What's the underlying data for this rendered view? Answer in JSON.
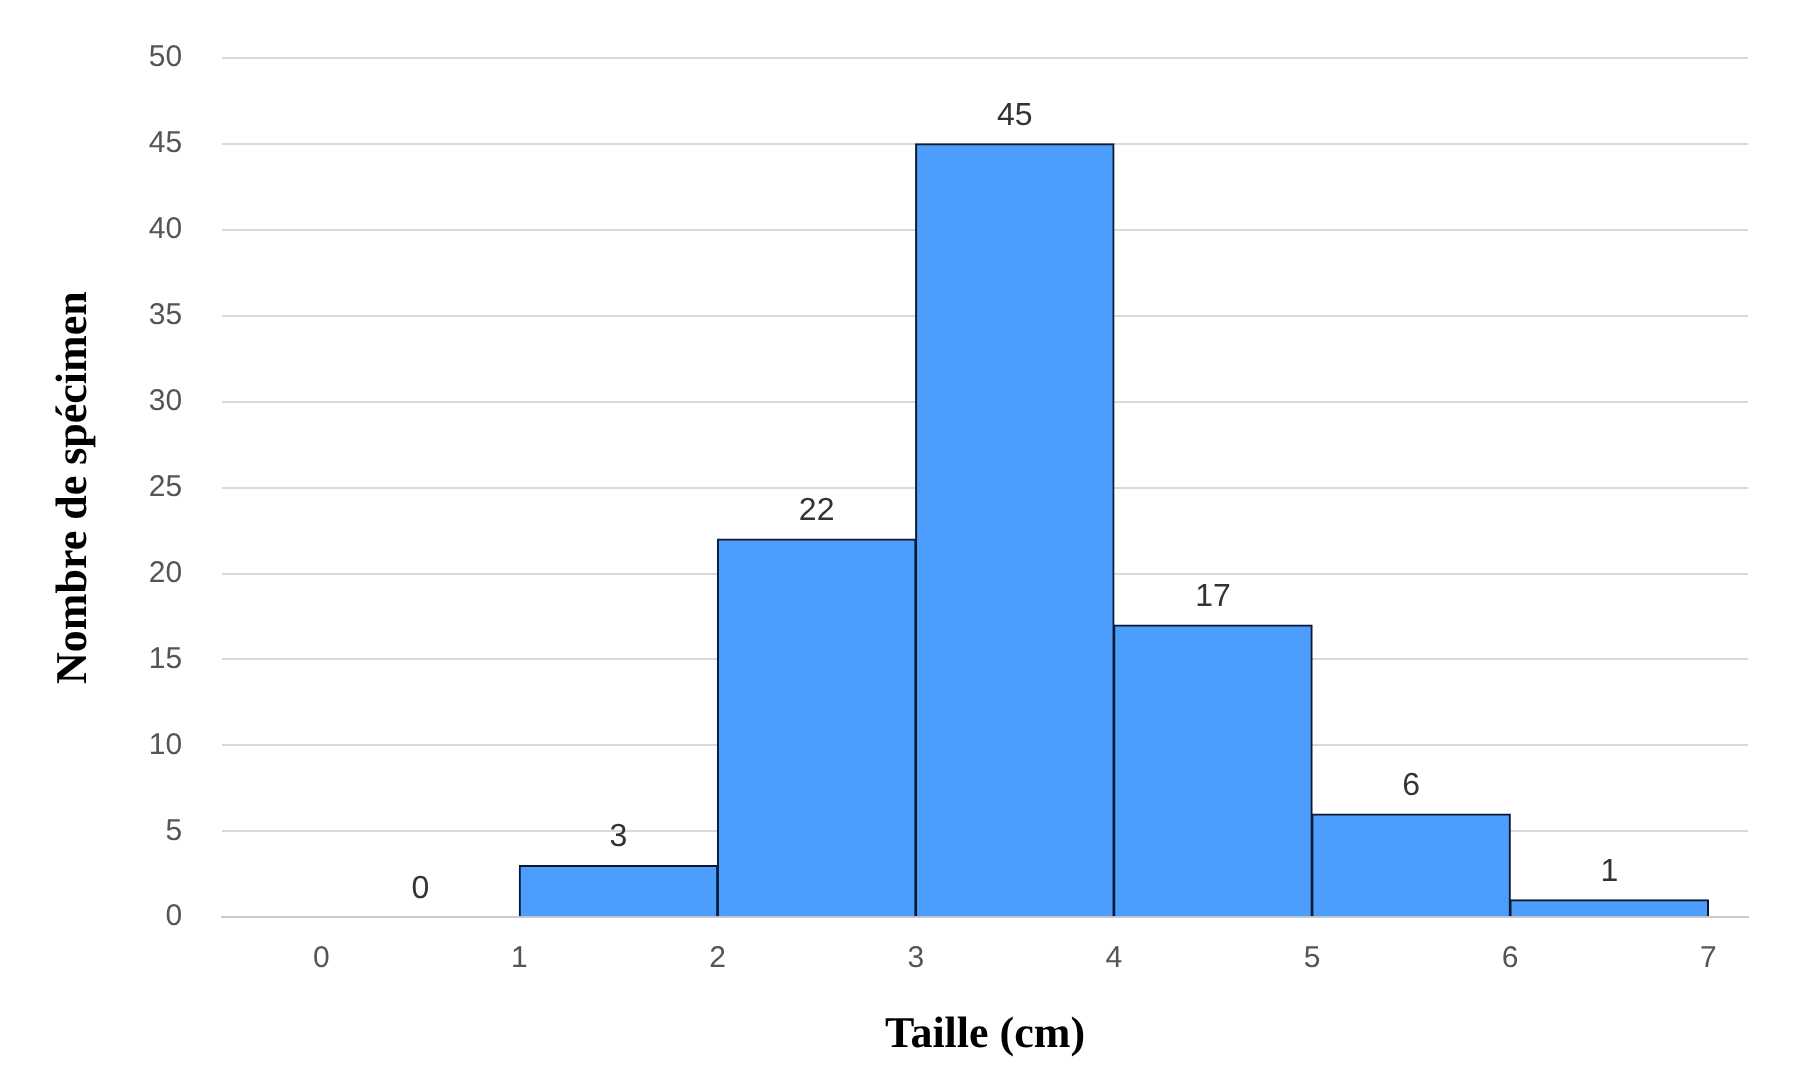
{
  "chart_data": {
    "type": "histogram",
    "xlabel": "Taille (cm)",
    "ylabel": "Nombre de spécimen",
    "bins": [
      0,
      1,
      2,
      3,
      4,
      5,
      6,
      7
    ],
    "values": [
      0,
      3,
      22,
      45,
      17,
      6,
      1
    ],
    "color": "#4d9efc",
    "xlim": [
      -0.5,
      7.2
    ],
    "xticks": [
      0,
      1,
      2,
      3,
      4,
      5,
      6,
      7
    ],
    "ylim": [
      0,
      50
    ],
    "yticks": [
      0,
      5,
      10,
      15,
      20,
      25,
      30,
      35,
      40,
      45,
      50
    ],
    "grid": "y",
    "legend": false,
    "data_labels": true
  }
}
